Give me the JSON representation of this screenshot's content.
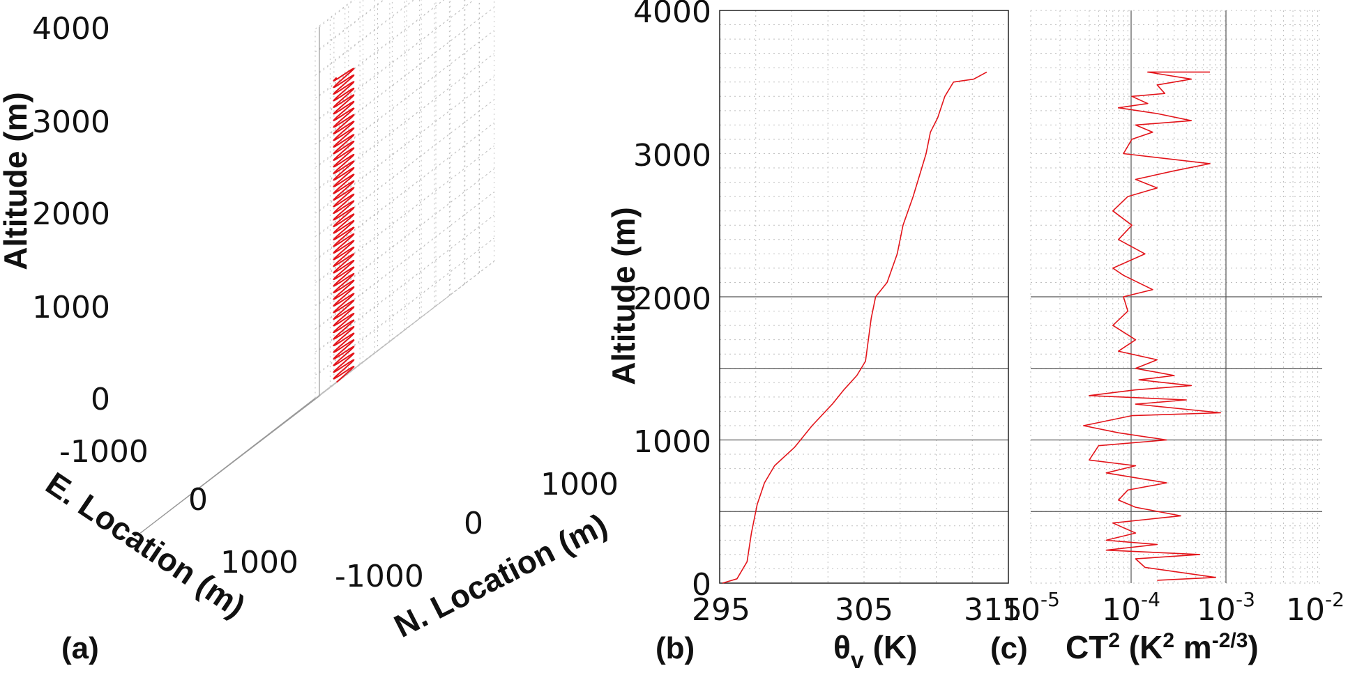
{
  "panels": {
    "a": {
      "label": "(a)"
    },
    "b": {
      "label": "(b)"
    },
    "c": {
      "label": "(c)"
    }
  },
  "chart_data": [
    {
      "panel": "(a)",
      "type": "line3d",
      "zlabel": "Altitude (m)",
      "xlabel": "E. Location (m)",
      "ylabel": "N. Location (m)",
      "zticks": [
        "0",
        "1000",
        "2000",
        "3000",
        "4000"
      ],
      "xticks": [
        "-1000",
        "0",
        "1000"
      ],
      "yticks": [
        "-1000",
        "0",
        "1000"
      ],
      "zlim": [
        0,
        4000
      ],
      "grid": true,
      "series": [
        {
          "color": "#e3151b",
          "helix": {
            "center_e": -200,
            "center_n": 250,
            "radius": 120,
            "z_start": 0,
            "z_end": 3300,
            "turns": 46
          }
        }
      ]
    },
    {
      "panel": "(b)",
      "type": "line",
      "ylabel": "Altitude (m)",
      "xlabel_main": "θ",
      "xlabel_sub": "v",
      "xlabel_unit": " (K)",
      "xticks": [
        "295",
        "305",
        "315"
      ],
      "yticks": [
        "0",
        "1000",
        "2000",
        "3000",
        "4000"
      ],
      "xlim": [
        295,
        315
      ],
      "ylim": [
        0,
        4000
      ],
      "grid": true,
      "reference_lines_y": [
        500,
        1000,
        1500,
        2000
      ],
      "series": [
        {
          "color": "#e3151b",
          "points": [
            [
              295.2,
              0
            ],
            [
              296.2,
              30
            ],
            [
              296.9,
              150
            ],
            [
              297.2,
              350
            ],
            [
              297.6,
              550
            ],
            [
              298.1,
              700
            ],
            [
              298.8,
              820
            ],
            [
              300.2,
              950
            ],
            [
              301.4,
              1100
            ],
            [
              302.8,
              1250
            ],
            [
              303.6,
              1350
            ],
            [
              304.5,
              1450
            ],
            [
              305.1,
              1550
            ],
            [
              305.3,
              1700
            ],
            [
              305.5,
              1850
            ],
            [
              305.8,
              2000
            ],
            [
              306.6,
              2100
            ],
            [
              307.3,
              2300
            ],
            [
              307.7,
              2500
            ],
            [
              308.4,
              2700
            ],
            [
              309.0,
              2900
            ],
            [
              309.3,
              3000
            ],
            [
              309.6,
              3150
            ],
            [
              310.1,
              3250
            ],
            [
              310.6,
              3400
            ],
            [
              311.2,
              3500
            ],
            [
              312.6,
              3520
            ],
            [
              313.5,
              3570
            ]
          ]
        }
      ]
    },
    {
      "panel": "(c)",
      "type": "line",
      "xscale": "log",
      "xlabel_main": "CT",
      "xlabel_sup": "2",
      "xlabel_unit_pre": " (K",
      "xlabel_unit_sup1": "2",
      "xlabel_unit_mid": " m",
      "xlabel_unit_sup2": "-2/3",
      "xlabel_unit_post": ")",
      "xticks": [
        {
          "base": "10",
          "exp": "-5",
          "value": 1e-05
        },
        {
          "base": "10",
          "exp": "-4",
          "value": 0.0001
        },
        {
          "base": "10",
          "exp": "-3",
          "value": 0.001
        },
        {
          "base": "10",
          "exp": "-2",
          "value": 0.01
        }
      ],
      "xlim": [
        1e-05,
        0.01
      ],
      "ylim": [
        0,
        4000
      ],
      "grid": true,
      "reference_lines_y": [
        500,
        1000,
        1500,
        2000
      ],
      "series": [
        {
          "color": "#e3151b",
          "points": [
            [
              0.0007,
              3570
            ],
            [
              0.00016,
              3570
            ],
            [
              0.00045,
              3520
            ],
            [
              0.0002,
              3480
            ],
            [
              0.00024,
              3420
            ],
            [
              0.00011,
              3400
            ],
            [
              0.00016,
              3350
            ],
            [
              8e-05,
              3320
            ],
            [
              0.0002,
              3280
            ],
            [
              0.00045,
              3230
            ],
            [
              0.00012,
              3200
            ],
            [
              0.00018,
              3150
            ],
            [
              0.00011,
              3100
            ],
            [
              9e-05,
              3000
            ],
            [
              0.0007,
              2930
            ],
            [
              0.0003,
              2880
            ],
            [
              0.00012,
              2820
            ],
            [
              0.0002,
              2760
            ],
            [
              0.0001,
              2700
            ],
            [
              7e-05,
              2600
            ],
            [
              0.00011,
              2500
            ],
            [
              8e-05,
              2400
            ],
            [
              0.00015,
              2300
            ],
            [
              7e-05,
              2200
            ],
            [
              9e-05,
              2150
            ],
            [
              0.00018,
              2050
            ],
            [
              9e-05,
              2000
            ],
            [
              0.0001,
              1900
            ],
            [
              7e-05,
              1800
            ],
            [
              0.00012,
              1700
            ],
            [
              8e-05,
              1620
            ],
            [
              0.0002,
              1560
            ],
            [
              0.00012,
              1500
            ],
            [
              0.0003,
              1450
            ],
            [
              0.00013,
              1420
            ],
            [
              0.00045,
              1380
            ],
            [
              0.00012,
              1350
            ],
            [
              4e-05,
              1310
            ],
            [
              0.0004,
              1280
            ],
            [
              0.00012,
              1250
            ],
            [
              0.0009,
              1190
            ],
            [
              0.00011,
              1170
            ],
            [
              3.5e-05,
              1100
            ],
            [
              8e-05,
              1050
            ],
            [
              0.00025,
              1000
            ],
            [
              5e-05,
              960
            ],
            [
              4e-05,
              860
            ],
            [
              0.00012,
              820
            ],
            [
              6e-05,
              770
            ],
            [
              0.00025,
              700
            ],
            [
              0.0001,
              650
            ],
            [
              8e-05,
              580
            ],
            [
              0.00012,
              530
            ],
            [
              0.00035,
              470
            ],
            [
              7e-05,
              420
            ],
            [
              0.00012,
              350
            ],
            [
              6e-05,
              300
            ],
            [
              0.0002,
              270
            ],
            [
              6e-05,
              230
            ],
            [
              0.00055,
              200
            ],
            [
              0.00012,
              170
            ],
            [
              0.00015,
              110
            ],
            [
              0.0008,
              40
            ],
            [
              0.0002,
              20
            ]
          ]
        }
      ]
    }
  ]
}
